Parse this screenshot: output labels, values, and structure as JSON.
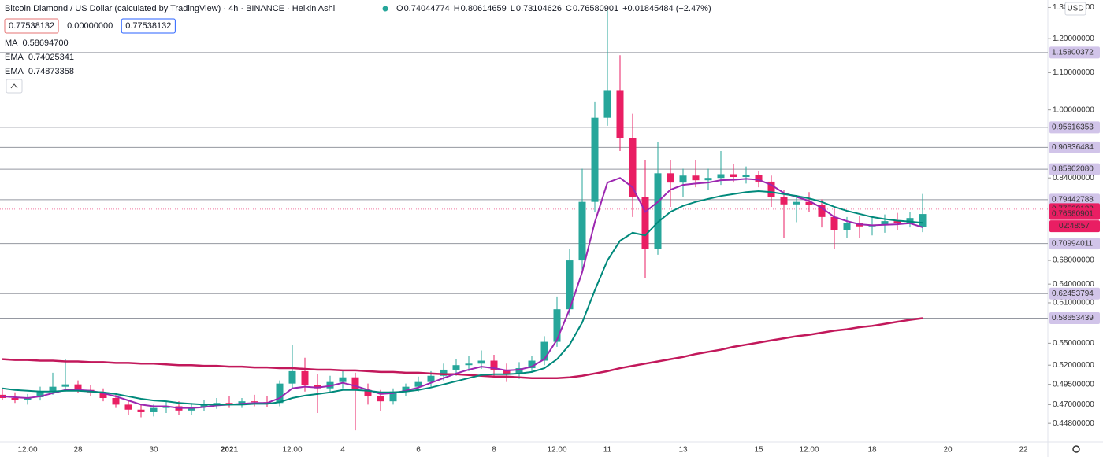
{
  "chart_data": {
    "type": "candlestick",
    "title": "Bitcoin Diamond / US Dollar (calculated by TradingView) · 4h · BINANCE · Heikin Ashi",
    "ohlc_labels": [
      "O",
      "H",
      "L",
      "C"
    ],
    "ohlc_values": [
      0.74044774,
      0.80614659,
      0.73104626,
      0.76580901
    ],
    "change": "+0.01845484 (+2.47%)",
    "inputs": [
      "0.77538132",
      "0.00000000",
      "0.77538132"
    ],
    "currency": "USD",
    "log_scale": true,
    "ylim": [
      0.427,
      1.325
    ],
    "yticks": [
      {
        "value": 0.448,
        "label": "0.44800000"
      },
      {
        "value": 0.47,
        "label": "0.47000000"
      },
      {
        "value": 0.495,
        "label": "0.49500000"
      },
      {
        "value": 0.52,
        "label": "0.52000000"
      },
      {
        "value": 0.55,
        "label": "0.55000000"
      },
      {
        "value": 0.61,
        "label": "0.61000000"
      },
      {
        "value": 0.64,
        "label": "0.64000000"
      },
      {
        "value": 0.68,
        "label": "0.68000000"
      },
      {
        "value": 0.84,
        "label": "0.84000000"
      },
      {
        "value": 1.0,
        "label": "1.00000000"
      },
      {
        "value": 1.1,
        "label": "1.10000000"
      },
      {
        "value": 1.2,
        "label": "1.20000000"
      },
      {
        "value": 1.3,
        "label": "1.30000000"
      }
    ],
    "price_lines": [
      {
        "value": 1.15800372,
        "label": "1.15800372"
      },
      {
        "value": 0.95616353,
        "label": "0.95616353"
      },
      {
        "value": 0.90836484,
        "label": "0.90836484"
      },
      {
        "value": 0.8590208,
        "label": "0.85902080"
      },
      {
        "value": 0.79442788,
        "label": "0.79442788"
      },
      {
        "value": 0.70994011,
        "label": "0.70994011"
      },
      {
        "value": 0.62453794,
        "label": "0.62453794"
      },
      {
        "value": 0.58653439,
        "label": "0.58653439"
      }
    ],
    "last_price": {
      "value": 0.77538132,
      "label": "0.77538132"
    },
    "close_price": 0.76580901,
    "countdown": "02:48:57",
    "up_color": "#26a69a",
    "down_color": "#e91e63",
    "categories": [
      null,
      null,
      "12:00",
      null,
      null,
      null,
      "28",
      null,
      null,
      null,
      null,
      null,
      "30",
      null,
      null,
      null,
      null,
      null,
      "2021",
      null,
      null,
      null,
      null,
      "12:00",
      null,
      null,
      null,
      "4",
      null,
      null,
      null,
      null,
      null,
      "6",
      null,
      null,
      null,
      null,
      null,
      "8",
      null,
      null,
      null,
      null,
      "12:00",
      null,
      null,
      null,
      "11",
      null,
      null,
      null,
      null,
      null,
      "13",
      null,
      null,
      null,
      null,
      null,
      "15",
      null,
      null,
      null,
      "12:00",
      null,
      null,
      null,
      null,
      "18",
      null,
      null,
      null,
      null,
      null,
      "20",
      null,
      null,
      null,
      null,
      null,
      "22"
    ],
    "open": [
      0.482,
      0.478,
      0.476,
      0.479,
      0.486,
      0.492,
      0.495,
      0.488,
      0.485,
      0.478,
      0.47,
      0.464,
      0.461,
      0.466,
      0.468,
      0.463,
      0.467,
      0.47,
      0.472,
      0.471,
      0.474,
      0.473,
      0.472,
      0.496,
      0.512,
      0.494,
      0.49,
      0.498,
      0.504,
      0.488,
      0.48,
      0.474,
      0.486,
      0.492,
      0.498,
      0.506,
      0.514,
      0.52,
      0.522,
      0.526,
      0.514,
      0.508,
      0.516,
      0.526,
      0.552,
      0.6,
      0.68,
      0.79,
      0.98,
      1.05,
      0.93,
      0.8,
      0.7,
      0.85,
      0.83,
      0.845,
      0.835,
      0.84,
      0.848,
      0.842,
      0.846,
      0.832,
      0.8,
      0.785,
      0.79,
      0.784,
      0.76,
      0.735,
      0.748,
      0.742,
      0.745,
      0.752,
      0.748,
      0.74044774,
      null,
      null,
      null,
      null,
      null,
      null,
      null,
      null
    ],
    "high": [
      0.49,
      0.485,
      0.483,
      0.492,
      0.51,
      0.528,
      0.5,
      0.494,
      0.49,
      0.483,
      0.476,
      0.47,
      0.47,
      0.474,
      0.474,
      0.472,
      0.476,
      0.478,
      0.48,
      0.478,
      0.482,
      0.48,
      0.5,
      0.548,
      0.53,
      0.508,
      0.506,
      0.512,
      0.51,
      0.496,
      0.488,
      0.49,
      0.496,
      0.505,
      0.512,
      0.522,
      0.528,
      0.532,
      0.54,
      0.534,
      0.522,
      0.524,
      0.532,
      0.56,
      0.62,
      0.7,
      0.86,
      1.02,
      1.29,
      1.15,
      0.99,
      0.88,
      0.92,
      0.88,
      0.86,
      0.88,
      0.86,
      0.9,
      0.87,
      0.865,
      0.855,
      0.845,
      0.815,
      0.8,
      0.81,
      0.795,
      0.775,
      0.76,
      0.762,
      0.76,
      0.765,
      0.768,
      0.77,
      0.80614659,
      null,
      null,
      null,
      null,
      null,
      null,
      null,
      null
    ],
    "low": [
      0.476,
      0.472,
      0.47,
      0.475,
      0.482,
      0.486,
      0.484,
      0.48,
      0.474,
      0.466,
      0.458,
      0.455,
      0.456,
      0.46,
      0.458,
      0.458,
      0.462,
      0.465,
      0.466,
      0.466,
      0.468,
      0.467,
      0.468,
      0.49,
      0.486,
      0.46,
      0.484,
      0.49,
      0.44,
      0.47,
      0.462,
      0.47,
      0.48,
      0.486,
      0.492,
      0.5,
      0.506,
      0.512,
      0.515,
      0.505,
      0.498,
      0.502,
      0.51,
      0.52,
      0.545,
      0.59,
      0.66,
      0.77,
      0.96,
      0.9,
      0.76,
      0.65,
      0.69,
      0.78,
      0.8,
      0.82,
      0.815,
      0.825,
      0.83,
      0.828,
      0.82,
      0.78,
      0.72,
      0.75,
      0.77,
      0.74,
      0.7,
      0.72,
      0.72,
      0.725,
      0.73,
      0.735,
      0.74,
      0.73104626,
      null,
      null,
      null,
      null,
      null,
      null,
      null,
      null
    ],
    "close": [
      0.478,
      0.476,
      0.479,
      0.486,
      0.492,
      0.495,
      0.488,
      0.485,
      0.478,
      0.47,
      0.464,
      0.461,
      0.466,
      0.468,
      0.463,
      0.467,
      0.47,
      0.472,
      0.471,
      0.474,
      0.473,
      0.472,
      0.496,
      0.512,
      0.494,
      0.49,
      0.498,
      0.504,
      0.488,
      0.48,
      0.474,
      0.486,
      0.492,
      0.498,
      0.506,
      0.514,
      0.52,
      0.522,
      0.526,
      0.514,
      0.508,
      0.516,
      0.526,
      0.552,
      0.6,
      0.68,
      0.79,
      0.98,
      1.05,
      0.93,
      0.8,
      0.7,
      0.85,
      0.83,
      0.845,
      0.835,
      0.84,
      0.848,
      0.842,
      0.846,
      0.832,
      0.8,
      0.785,
      0.79,
      0.784,
      0.76,
      0.735,
      0.748,
      0.742,
      0.745,
      0.752,
      0.748,
      0.758,
      0.76580901,
      null,
      null,
      null,
      null,
      null,
      null,
      null,
      null
    ],
    "series": [
      {
        "name": "MA",
        "legend_value": "0.58694700",
        "color": "#c2185b",
        "width": 2.5,
        "values": [
          0.528,
          0.527,
          0.527,
          0.526,
          0.526,
          0.525,
          0.525,
          0.524,
          0.524,
          0.523,
          0.523,
          0.522,
          0.522,
          0.521,
          0.52,
          0.52,
          0.519,
          0.519,
          0.518,
          0.518,
          0.517,
          0.517,
          0.516,
          0.516,
          0.515,
          0.514,
          0.514,
          0.513,
          0.513,
          0.512,
          0.511,
          0.511,
          0.51,
          0.51,
          0.509,
          0.508,
          0.508,
          0.507,
          0.506,
          0.505,
          0.505,
          0.504,
          0.503,
          0.503,
          0.503,
          0.504,
          0.506,
          0.509,
          0.512,
          0.516,
          0.519,
          0.522,
          0.525,
          0.528,
          0.531,
          0.535,
          0.538,
          0.541,
          0.545,
          0.548,
          0.551,
          0.554,
          0.557,
          0.56,
          0.562,
          0.565,
          0.568,
          0.57,
          0.573,
          0.575,
          0.578,
          0.581,
          0.584,
          0.5865,
          null,
          null,
          null,
          null,
          null,
          null,
          null,
          null
        ]
      },
      {
        "name": "EMA",
        "legend_value": "0.74025341",
        "color": "#9c27b0",
        "width": 2,
        "values": [
          0.48,
          0.479,
          0.478,
          0.48,
          0.484,
          0.488,
          0.488,
          0.487,
          0.484,
          0.48,
          0.475,
          0.47,
          0.468,
          0.468,
          0.466,
          0.466,
          0.467,
          0.469,
          0.47,
          0.471,
          0.472,
          0.472,
          0.478,
          0.49,
          0.492,
          0.491,
          0.493,
          0.497,
          0.493,
          0.488,
          0.483,
          0.484,
          0.487,
          0.491,
          0.497,
          0.503,
          0.509,
          0.514,
          0.518,
          0.516,
          0.513,
          0.514,
          0.518,
          0.528,
          0.555,
          0.6,
          0.66,
          0.75,
          0.83,
          0.84,
          0.82,
          0.77,
          0.79,
          0.815,
          0.825,
          0.828,
          0.83,
          0.835,
          0.836,
          0.838,
          0.836,
          0.825,
          0.808,
          0.8,
          0.792,
          0.778,
          0.76,
          0.752,
          0.746,
          0.744,
          0.745,
          0.746,
          0.748,
          0.7403,
          null,
          null,
          null,
          null,
          null,
          null,
          null,
          null
        ]
      },
      {
        "name": "EMA",
        "legend_value": "0.74873358",
        "color": "#00897b",
        "width": 2,
        "values": [
          0.49,
          0.488,
          0.487,
          0.486,
          0.486,
          0.487,
          0.487,
          0.486,
          0.485,
          0.483,
          0.48,
          0.477,
          0.475,
          0.474,
          0.472,
          0.471,
          0.47,
          0.47,
          0.47,
          0.47,
          0.471,
          0.471,
          0.473,
          0.478,
          0.481,
          0.483,
          0.485,
          0.488,
          0.488,
          0.487,
          0.485,
          0.485,
          0.486,
          0.488,
          0.491,
          0.495,
          0.499,
          0.503,
          0.507,
          0.508,
          0.508,
          0.509,
          0.511,
          0.516,
          0.528,
          0.548,
          0.58,
          0.63,
          0.68,
          0.715,
          0.73,
          0.725,
          0.75,
          0.77,
          0.782,
          0.79,
          0.796,
          0.802,
          0.806,
          0.81,
          0.812,
          0.81,
          0.806,
          0.802,
          0.797,
          0.79,
          0.78,
          0.772,
          0.766,
          0.76,
          0.756,
          0.753,
          0.751,
          0.7487,
          null,
          null,
          null,
          null,
          null,
          null,
          null,
          null
        ]
      }
    ]
  }
}
